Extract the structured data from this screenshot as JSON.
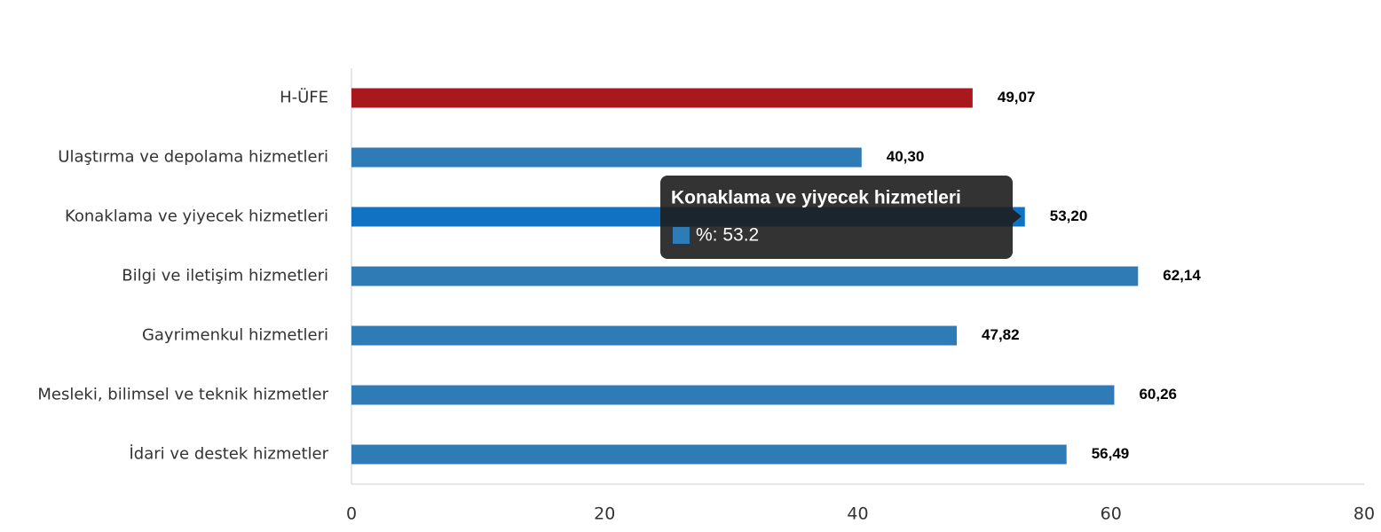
{
  "chart_data": {
    "type": "bar",
    "orientation": "horizontal",
    "categories": [
      "H-ÜFE",
      "Ulaştırma ve depolama hizmetleri",
      "Konaklama ve yiyecek hizmetleri",
      "Bilgi ve iletişim hizmetleri",
      "Gayrimenkul hizmetleri",
      "Mesleki, bilimsel ve teknik hizmetler",
      "İdari ve destek hizmetler"
    ],
    "series": [
      {
        "name": "%",
        "color": "#2e7bb6",
        "colors": [
          "#a8181e",
          "#2e7bb6",
          "#1172c4",
          "#2e7bb6",
          "#2e7bb6",
          "#2e7bb6",
          "#2e7bb6"
        ],
        "values": [
          49.07,
          40.3,
          53.2,
          62.14,
          47.82,
          60.26,
          56.49
        ],
        "value_labels": [
          "49,07",
          "40,30",
          "53,20",
          "62,14",
          "47,82",
          "60,26",
          "56,49"
        ]
      }
    ],
    "xlim": [
      0,
      80
    ],
    "xticks": [
      0,
      20,
      40,
      60,
      80
    ],
    "grid": false,
    "tooltip": {
      "title": "Konaklama ve yiyecek hizmetleri",
      "text": "%: 53.2"
    }
  }
}
